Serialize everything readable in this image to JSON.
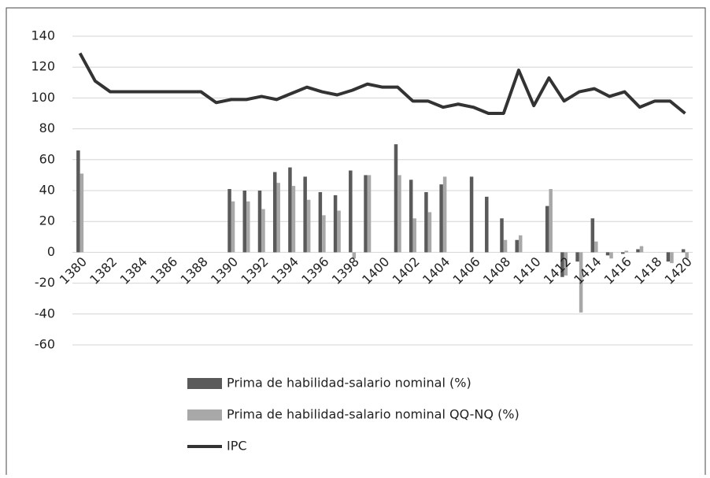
{
  "chart_data": {
    "type": "bar-line",
    "categories": [
      "1380",
      null,
      "1382",
      null,
      "1384",
      null,
      "1386",
      null,
      "1388",
      null,
      "1390",
      null,
      "1392",
      null,
      "1394",
      null,
      "1396",
      null,
      "1398",
      null,
      "1400",
      null,
      "1402",
      null,
      "1404",
      null,
      "1406",
      null,
      "1408",
      null,
      "1410",
      null,
      "1412",
      null,
      "1414",
      null,
      "1416",
      null,
      "1418",
      null,
      "1420"
    ],
    "series": [
      {
        "name": "Prima de habilidad-salario nominal (%)",
        "type": "bar",
        "color": "#5a5a5a",
        "values": [
          66,
          null,
          null,
          null,
          null,
          null,
          null,
          null,
          null,
          null,
          41,
          40,
          40,
          52,
          55,
          49,
          39,
          37,
          53,
          50,
          null,
          70,
          47,
          39,
          44,
          null,
          49,
          36,
          22,
          8,
          null,
          30,
          -16,
          -6,
          22,
          -2,
          -1,
          2,
          null,
          -6,
          2
        ]
      },
      {
        "name": "Prima de habilidad-salario nominal QQ-NQ (%)",
        "type": "bar",
        "color": "#a8a8a8",
        "values": [
          51,
          null,
          null,
          null,
          null,
          null,
          null,
          null,
          null,
          null,
          33,
          33,
          28,
          45,
          43,
          34,
          24,
          27,
          -4,
          50,
          null,
          50,
          22,
          26,
          49,
          null,
          null,
          null,
          8,
          11,
          null,
          41,
          -15,
          -39,
          7,
          -4,
          1,
          4,
          null,
          -7,
          -4
        ]
      },
      {
        "name": "IPC",
        "type": "line",
        "color": "#333333",
        "values": [
          129,
          111,
          104,
          104,
          104,
          104,
          104,
          104,
          104,
          97,
          99,
          99,
          101,
          99,
          103,
          107,
          104,
          102,
          105,
          109,
          107,
          107,
          98,
          98,
          94,
          96,
          94,
          90,
          90,
          118,
          95,
          113,
          98,
          104,
          106,
          101,
          104,
          94,
          98,
          98,
          90
        ]
      }
    ],
    "ylim": [
      -60,
      140
    ],
    "yticks": [
      -60,
      -40,
      -20,
      0,
      20,
      40,
      60,
      80,
      100,
      120,
      140
    ],
    "grid": true,
    "legend": "bottom"
  }
}
